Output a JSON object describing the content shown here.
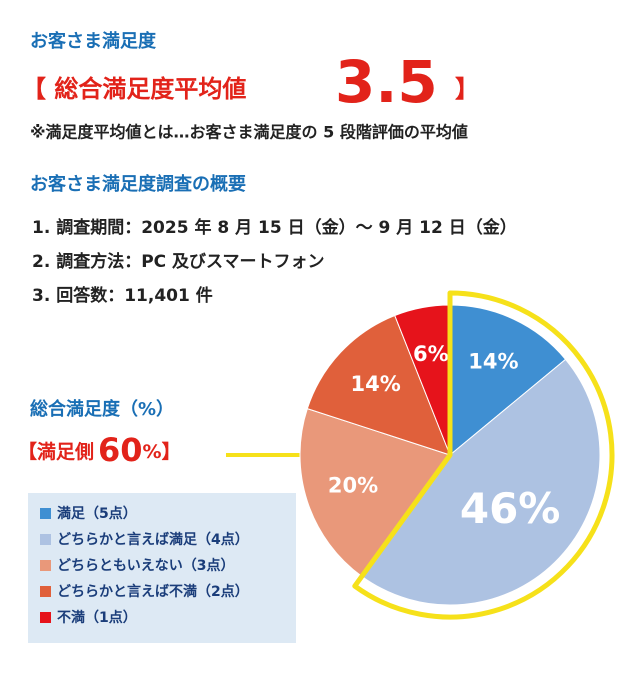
{
  "header": {
    "title": "お客さま満足度",
    "average_prefix": "【 総合満足度平均値",
    "average_value": "3.5",
    "average_suffix": "】",
    "note": "※満足度平均値とは…お客さま満足度の 5 段階評価の平均値"
  },
  "overview": {
    "title": "お客さま満足度調査の概要",
    "items": [
      "1. 調査期間：2025 年 8 月 15 日（金）～ 9 月 12 日（金）",
      "2. 調査方法：PC 及びスマートフォン",
      "3. 回答数：11,401 件"
    ]
  },
  "chart_data": {
    "type": "pie",
    "title": "総合満足度（%）",
    "highlight": {
      "prefix": "【満足側",
      "value": 60,
      "label": "60",
      "unit": "%",
      "suffix": "】"
    },
    "categories": [
      "満足（5点）",
      "どちらかと言えば満足（4点）",
      "どちらともいえない（3点）",
      "どちらかと言えば不満（2点）",
      "不満（1点）"
    ],
    "values": [
      14,
      46,
      20,
      14,
      6
    ],
    "value_labels": [
      "14%",
      "46%",
      "20%",
      "14%",
      "6%"
    ],
    "colors": [
      "#3f8fd2",
      "#adc2e2",
      "#e9987a",
      "#e0603b",
      "#e6131b"
    ]
  }
}
